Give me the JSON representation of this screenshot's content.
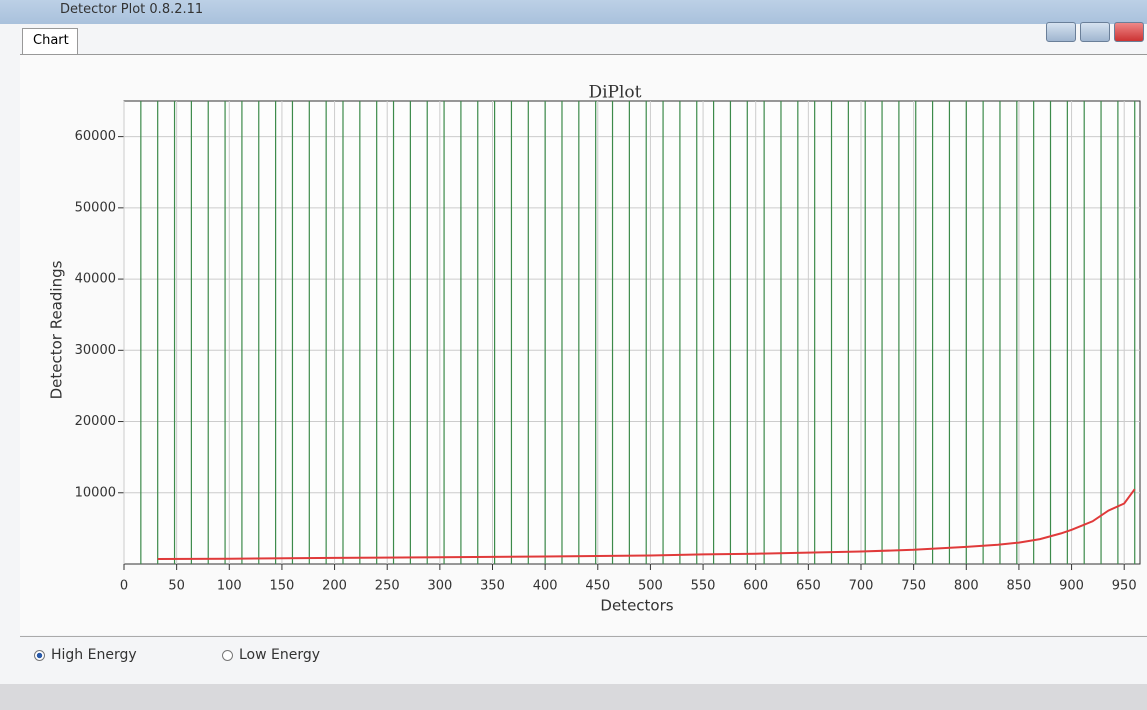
{
  "window": {
    "title": "Detector Plot 0.8.2.11",
    "tab": "Chart"
  },
  "options": {
    "high_energy": "High Energy",
    "low_energy": "Low Energy"
  },
  "chart_data": {
    "type": "line",
    "title": "DiPlot",
    "x_label": "Detectors",
    "y_label": "Detector Readings",
    "x": [
      32,
      100,
      200,
      300,
      400,
      500,
      550,
      600,
      650,
      700,
      750,
      800,
      830,
      850,
      870,
      890,
      900,
      920,
      935,
      950,
      960
    ],
    "values": [
      700,
      750,
      850,
      950,
      1050,
      1200,
      1350,
      1450,
      1600,
      1750,
      2000,
      2400,
      2700,
      3000,
      3500,
      4300,
      4800,
      6000,
      7500,
      8500,
      10500
    ],
    "color": "#e03a3a",
    "module_lines": [
      16,
      32,
      48,
      64,
      80,
      96,
      112,
      128,
      144,
      160,
      176,
      192,
      208,
      224,
      240,
      256,
      272,
      288,
      304,
      320,
      336,
      352,
      368,
      384,
      400,
      416,
      432,
      448,
      464,
      480,
      496,
      512,
      528,
      544,
      560,
      576,
      592,
      608,
      624,
      640,
      656,
      672,
      688,
      704,
      720,
      736,
      752,
      768,
      784,
      800,
      816,
      832,
      848,
      864,
      880,
      896,
      912,
      928,
      944,
      960
    ],
    "module_line_color": "#3c8a4a",
    "xlim": [
      0,
      965
    ],
    "ylim": [
      0,
      65000
    ],
    "xticks": [
      0,
      50,
      100,
      150,
      200,
      250,
      300,
      350,
      400,
      450,
      500,
      550,
      600,
      650,
      700,
      750,
      800,
      850,
      900,
      950
    ],
    "yticks": [
      10000,
      20000,
      30000,
      40000,
      50000,
      60000
    ],
    "grid": true
  }
}
